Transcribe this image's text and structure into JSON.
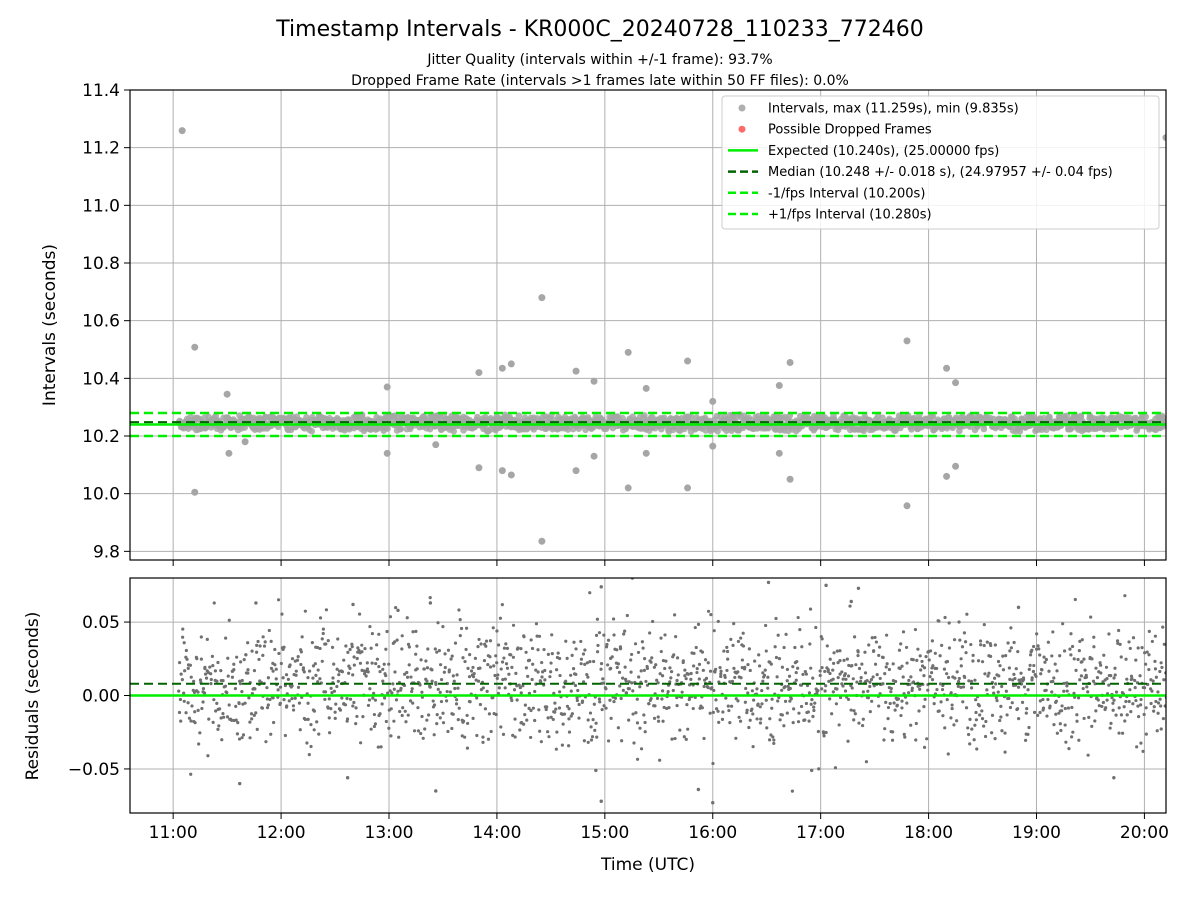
{
  "title": "Timestamp Intervals - KR000C_20240728_110233_772460",
  "subtitle_1": "Jitter Quality (intervals within +/-1 frame): 93.7%",
  "subtitle_2": "Dropped Frame Rate (intervals >1 frames late within 50 FF files): 0.0%",
  "colors": {
    "points": "#a6a6a6",
    "residual_points": "#707070",
    "dropped": "#ff5a5a",
    "expected": "#00ee00",
    "median": "#006400",
    "interval": "#00ee00",
    "grid": "#b0b0b0"
  },
  "chart_data": [
    {
      "type": "scatter",
      "ylabel": "Intervals (seconds)",
      "ylim": [
        9.77,
        11.4
      ],
      "xlim": [
        "10:36",
        "20:12"
      ],
      "grid": true,
      "legend_position": "top-right",
      "y_ticks": [
        "9.8",
        "10.0",
        "10.2",
        "10.4",
        "10.6",
        "10.8",
        "11.0",
        "11.2",
        "11.4"
      ],
      "x_ticks": [
        "11:00",
        "12:00",
        "13:00",
        "14:00",
        "15:00",
        "16:00",
        "17:00",
        "18:00",
        "19:00",
        "20:00"
      ],
      "legend": [
        {
          "label": "Intervals, max (11.259s), min (9.835s)",
          "kind": "point",
          "color": "#a6a6a6"
        },
        {
          "label": "Possible Dropped Frames",
          "kind": "point",
          "color": "#ff5a5a"
        },
        {
          "label": "Expected (10.240s), (25.00000 fps)",
          "kind": "solid",
          "color": "#00ee00"
        },
        {
          "label": "Median (10.248 +/- 0.018 s), (24.97957 +/- 0.04 fps)",
          "kind": "dashed",
          "color": "#006400"
        },
        {
          "label": "-1/fps Interval (10.200s)",
          "kind": "dashed",
          "color": "#00ee00"
        },
        {
          "label": "+1/fps Interval (10.280s)",
          "kind": "dashed",
          "color": "#00ee00"
        }
      ],
      "expected": 10.24,
      "median": 10.248,
      "lower_interval": 10.2,
      "upper_interval": 10.28,
      "band": {
        "start": "11:03",
        "end": "20:12",
        "center": 10.245,
        "spread": 0.03
      },
      "outliers": [
        {
          "x": "11:05",
          "y": 11.259
        },
        {
          "x": "11:12",
          "y": 10.508
        },
        {
          "x": "11:12",
          "y": 10.005
        },
        {
          "x": "11:30",
          "y": 10.345
        },
        {
          "x": "11:31",
          "y": 10.14
        },
        {
          "x": "11:40",
          "y": 10.18
        },
        {
          "x": "12:59",
          "y": 10.37
        },
        {
          "x": "12:59",
          "y": 10.14
        },
        {
          "x": "13:26",
          "y": 10.17
        },
        {
          "x": "13:50",
          "y": 10.42
        },
        {
          "x": "13:50",
          "y": 10.09
        },
        {
          "x": "14:03",
          "y": 10.435
        },
        {
          "x": "14:03",
          "y": 10.08
        },
        {
          "x": "14:08",
          "y": 10.45
        },
        {
          "x": "14:08",
          "y": 10.065
        },
        {
          "x": "14:25",
          "y": 10.68
        },
        {
          "x": "14:25",
          "y": 9.835
        },
        {
          "x": "14:44",
          "y": 10.425
        },
        {
          "x": "14:44",
          "y": 10.08
        },
        {
          "x": "14:54",
          "y": 10.39
        },
        {
          "x": "14:54",
          "y": 10.13
        },
        {
          "x": "15:13",
          "y": 10.49
        },
        {
          "x": "15:13",
          "y": 10.02
        },
        {
          "x": "15:23",
          "y": 10.365
        },
        {
          "x": "15:23",
          "y": 10.14
        },
        {
          "x": "15:46",
          "y": 10.46
        },
        {
          "x": "15:46",
          "y": 10.02
        },
        {
          "x": "16:00",
          "y": 10.32
        },
        {
          "x": "16:00",
          "y": 10.165
        },
        {
          "x": "16:37",
          "y": 10.375
        },
        {
          "x": "16:37",
          "y": 10.14
        },
        {
          "x": "16:43",
          "y": 10.455
        },
        {
          "x": "16:43",
          "y": 10.05
        },
        {
          "x": "17:48",
          "y": 10.53
        },
        {
          "x": "17:48",
          "y": 9.958
        },
        {
          "x": "18:10",
          "y": 10.435
        },
        {
          "x": "18:10",
          "y": 10.06
        },
        {
          "x": "18:15",
          "y": 10.385
        },
        {
          "x": "18:15",
          "y": 10.095
        },
        {
          "x": "20:12",
          "y": 11.235
        }
      ]
    },
    {
      "type": "scatter",
      "xlabel": "Time (UTC)",
      "ylabel": "Residuals (seconds)",
      "ylim": [
        -0.08,
        0.08
      ],
      "xlim": [
        "10:36",
        "20:12"
      ],
      "grid": true,
      "y_ticks": [
        "−0.05",
        "0.00",
        "0.05"
      ],
      "x_ticks": [
        "11:00",
        "12:00",
        "13:00",
        "14:00",
        "15:00",
        "16:00",
        "17:00",
        "18:00",
        "19:00",
        "20:00"
      ],
      "expected": 0.0,
      "median": 0.008,
      "band": {
        "start": "11:03",
        "end": "20:12",
        "center": 0.008,
        "spread": 0.02
      },
      "outliers": [
        {
          "x": "11:46",
          "y": 0.063
        },
        {
          "x": "11:37",
          "y": -0.06
        },
        {
          "x": "12:40",
          "y": 0.062
        },
        {
          "x": "13:05",
          "y": 0.058
        },
        {
          "x": "13:23",
          "y": 0.063
        },
        {
          "x": "12:37",
          "y": -0.056
        },
        {
          "x": "13:26",
          "y": -0.065
        },
        {
          "x": "14:55",
          "y": -0.051
        },
        {
          "x": "14:58",
          "y": 0.074
        },
        {
          "x": "14:58",
          "y": -0.072
        },
        {
          "x": "15:52",
          "y": -0.064
        },
        {
          "x": "16:00",
          "y": -0.073
        },
        {
          "x": "16:31",
          "y": 0.077
        },
        {
          "x": "17:03",
          "y": 0.075
        },
        {
          "x": "17:21",
          "y": 0.073
        },
        {
          "x": "17:17",
          "y": 0.064
        },
        {
          "x": "16:55",
          "y": -0.051
        },
        {
          "x": "18:50",
          "y": 0.06
        },
        {
          "x": "19:43",
          "y": -0.056
        }
      ]
    }
  ]
}
